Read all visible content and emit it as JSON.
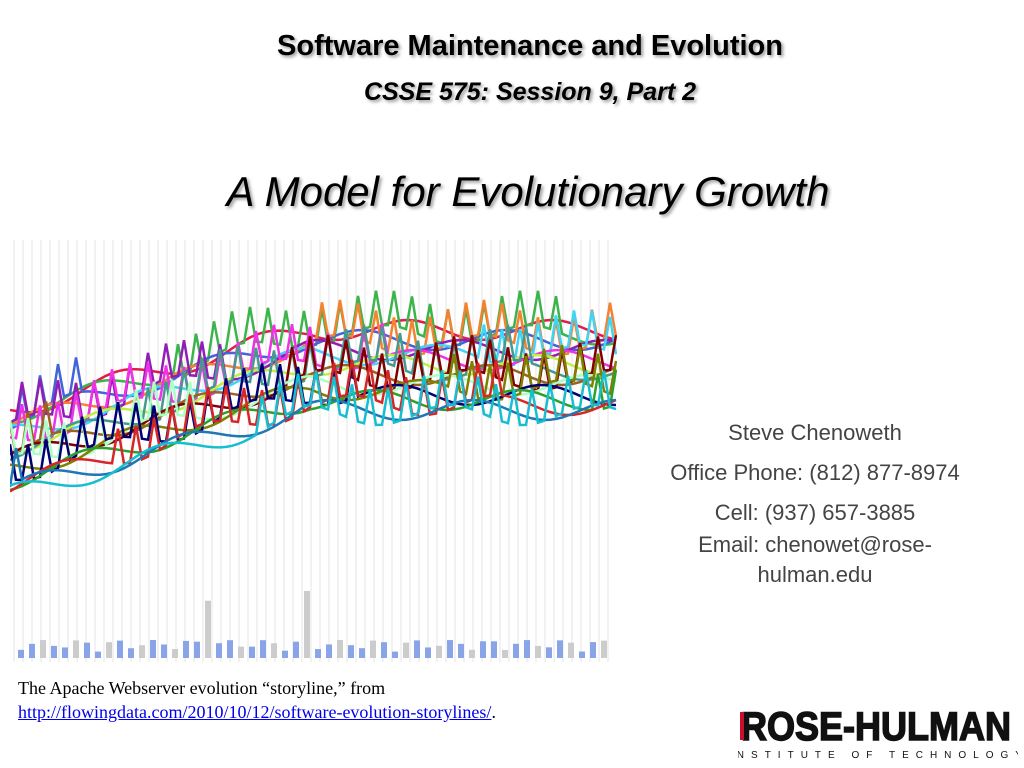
{
  "header": {
    "title": "Software Maintenance and Evolution",
    "subtitle": "CSSE 575: Session 9, Part 2"
  },
  "heading": "A Model for Evolutionary Growth",
  "contact": {
    "name": "Steve Chenoweth",
    "office": "Office Phone: (812) 877-8974",
    "cell": "Cell: (937) 657-3885",
    "email": "Email: chenowet@rose-hulman.edu"
  },
  "caption": {
    "text": "The Apache Webserver evolution “storyline,” from",
    "link": "http://flowingdata.com/2010/10/12/software-evolution-storylines/",
    "end": "."
  },
  "logo": {
    "name": "ROSE-HULMAN",
    "tagline": "INSTITUTE OF TECHNOLOGY"
  }
}
